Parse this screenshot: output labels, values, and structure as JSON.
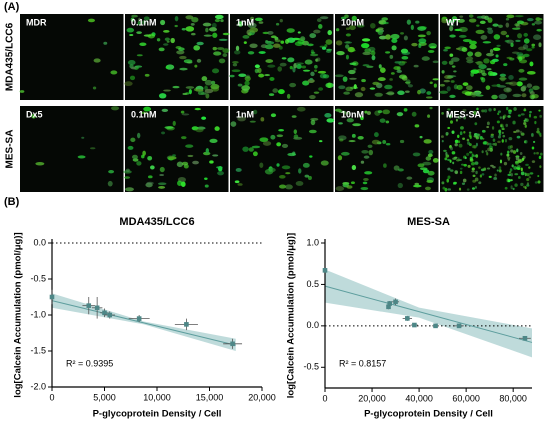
{
  "panels": {
    "a": "(A)",
    "b": "(B)"
  },
  "images": {
    "rows": [
      {
        "label": "MDA435/LCC6",
        "tiles": [
          "MDR",
          "0.1nM",
          "1nM",
          "10nM",
          "WT"
        ]
      },
      {
        "label": "MES-SA",
        "tiles": [
          "Dx5",
          "0.1nM",
          "1nM",
          "10nM",
          "MES-SA"
        ]
      }
    ]
  },
  "chart_data": [
    {
      "type": "scatter",
      "title": "MDA435/LCC6",
      "x_label": "P-glycoprotein Density / Cell",
      "y_label": "log[Calcein Accumulation (pmol/μg)]",
      "annotation": "R² = 0.9395",
      "xlim": [
        0,
        20000
      ],
      "xticks": [
        0,
        {
          "value": 5000,
          "label": "5,000"
        },
        {
          "value": 10000,
          "label": "10,000"
        },
        {
          "value": 15000,
          "label": "15,000"
        },
        {
          "value": 20000,
          "label": "20,000"
        }
      ],
      "ylim": [
        -2.0,
        0.0
      ],
      "yticks": [
        {
          "value": -2.0,
          "label": "-2.0"
        },
        -1.5,
        {
          "value": -1.0,
          "label": "-1.0"
        },
        -0.5,
        {
          "value": 0.0,
          "label": "0.0"
        }
      ],
      "reference_line": 0,
      "series": [
        {
          "color": "#4d8787",
          "x": [
            0,
            3500,
            4300,
            5000,
            5500,
            8300,
            12800,
            17200
          ],
          "values": [
            -0.75,
            -0.87,
            -0.9,
            -0.97,
            -1.0,
            -1.05,
            -1.13,
            -1.4
          ],
          "xerr": [
            0,
            600,
            500,
            400,
            500,
            1000,
            1100,
            900
          ],
          "yerr": [
            0.1,
            0.12,
            0.15,
            0.06,
            0.05,
            0.05,
            0.08,
            0.07
          ]
        }
      ],
      "fit": {
        "color": "#5e9e9e",
        "x": [
          0,
          17500
        ],
        "y": [
          -0.8,
          -1.42
        ]
      },
      "band": {
        "color": "#aacfcf",
        "x": [
          0,
          8750,
          17500
        ],
        "lower": [
          -0.9,
          -1.13,
          -1.5
        ],
        "upper": [
          -0.7,
          -1.09,
          -1.33
        ]
      }
    },
    {
      "type": "scatter",
      "title": "MES-SA",
      "x_label": "P-glycoprotein Density / Cell",
      "y_label": "log[Calcein Accumulation (pmol/μg)]",
      "annotation": "R² = 0.8157",
      "xlim": [
        0,
        88000
      ],
      "xticks": [
        0,
        {
          "value": 20000,
          "label": "20,000"
        },
        {
          "value": 40000,
          "label": "40,000"
        },
        {
          "value": 60000,
          "label": "60,000"
        },
        {
          "value": 80000,
          "label": "80,000"
        }
      ],
      "ylim": [
        -0.75,
        1.0
      ],
      "yticks": [
        -0.5,
        {
          "value": 0.0,
          "label": "0.0"
        },
        0.5,
        {
          "value": 1.0,
          "label": "1.0"
        }
      ],
      "reference_line": 0,
      "series": [
        {
          "color": "#4d8787",
          "x": [
            0,
            27000,
            27500,
            30000,
            35000,
            38000,
            47000,
            57000,
            85000
          ],
          "values": [
            0.67,
            0.23,
            0.27,
            0.29,
            0.09,
            0.01,
            0.0,
            0.0,
            -0.15
          ],
          "xerr": [
            0,
            800,
            800,
            1500,
            2000,
            1500,
            1500,
            2000,
            2500
          ],
          "yerr": [
            0,
            0.03,
            0.03,
            0.04,
            0.03,
            0.02,
            0.02,
            0.02,
            0.02
          ]
        }
      ],
      "fit": {
        "color": "#5e9e9e",
        "x": [
          0,
          88000
        ],
        "y": [
          0.48,
          -0.2
        ]
      },
      "band": {
        "color": "#aacfcf",
        "x": [
          0,
          40000,
          88000
        ],
        "lower": [
          0.28,
          0.1,
          -0.38
        ],
        "upper": [
          0.68,
          0.22,
          -0.03
        ]
      }
    }
  ]
}
